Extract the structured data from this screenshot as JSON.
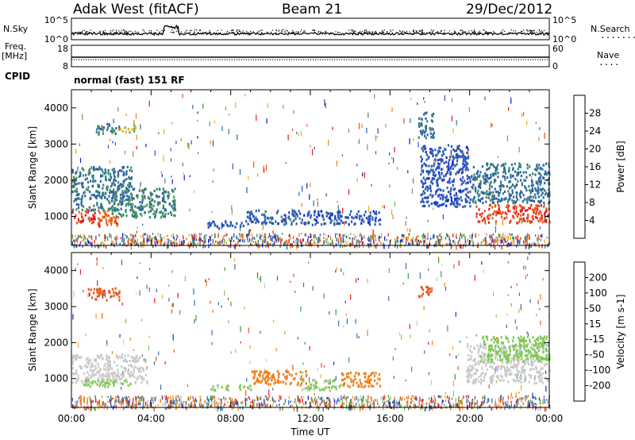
{
  "header": {
    "station": "Adak West (fitACF)",
    "beam": "Beam 21",
    "date": "29/Dec/2012"
  },
  "side_labels": {
    "nsky": "N.Sky",
    "nsearch": "N.Search",
    "nsearch_dots": "........",
    "freq": "Freq.",
    "freq_unit": "[MHz]",
    "nave": "Nave",
    "nave_dots": "....",
    "cpid": "CPID",
    "mode": "normal (fast) 151 RF"
  },
  "colors": {
    "power_scale": [
      "#0a1cd8",
      "#2a4fc0",
      "#2f63a8",
      "#3a8a66",
      "#62aa52",
      "#f1ab12",
      "#f07f18",
      "#e8561e",
      "#e51818"
    ],
    "velocity_scale": [
      "#e51818",
      "#e8561e",
      "#f07f18",
      "#f1a52b",
      "#c9c9c9",
      "#c9c9c9",
      "#7ec850",
      "#3aa03a",
      "#3a6cb4",
      "#1a34c8"
    ]
  },
  "chart_data": [
    {
      "type": "line",
      "name": "noise",
      "left_axis": {
        "title": "N.Sky",
        "tick_labels": [
          "10^5",
          "10^0"
        ]
      },
      "right_axis": {
        "title": "N.Search",
        "tick_labels": [
          "10^5",
          "10^0"
        ]
      },
      "x_range_hours": [
        0,
        24
      ]
    },
    {
      "type": "line",
      "name": "frequency-nave",
      "left_axis": {
        "title": "Freq. [MHz]",
        "tick_labels": [
          "18",
          "8"
        ],
        "range": [
          8,
          18
        ]
      },
      "right_axis": {
        "title": "Nave",
        "tick_labels": [
          "60",
          "0"
        ],
        "range": [
          0,
          60
        ]
      },
      "x_range_hours": [
        0,
        24
      ]
    },
    {
      "type": "heatmap",
      "name": "power",
      "ylabel": "Slant Range [km]",
      "ylim": [
        200,
        4500
      ],
      "yticks": [
        1000,
        2000,
        3000,
        4000
      ],
      "x_range_hours": [
        0,
        24
      ],
      "colorbar": {
        "title": "Power [dB]",
        "tick_labels": [
          "4",
          "8",
          "12",
          "16",
          "20",
          "24",
          "28"
        ],
        "range": [
          0,
          32
        ]
      },
      "regions": [
        {
          "t": [
            0.0,
            1.2
          ],
          "range": [
            850,
            1200
          ],
          "value": 30
        },
        {
          "t": [
            1.2,
            2.4
          ],
          "range": [
            750,
            1200
          ],
          "value": 26
        },
        {
          "t": [
            0.0,
            3.0
          ],
          "range": [
            1200,
            2400
          ],
          "value": 10
        },
        {
          "t": [
            2.0,
            5.2
          ],
          "range": [
            1000,
            1800
          ],
          "value": 12
        },
        {
          "t": [
            1.2,
            2.4
          ],
          "range": [
            3300,
            3600
          ],
          "value": 12
        },
        {
          "t": [
            2.4,
            3.2
          ],
          "range": [
            3350,
            3550
          ],
          "value": 18
        },
        {
          "t": [
            6.8,
            8.8
          ],
          "range": [
            700,
            900
          ],
          "value": 6
        },
        {
          "t": [
            8.8,
            11.5
          ],
          "range": [
            800,
            1200
          ],
          "value": 8
        },
        {
          "t": [
            11.5,
            15.5
          ],
          "range": [
            800,
            1200
          ],
          "value": 6
        },
        {
          "t": [
            17.4,
            18.2
          ],
          "range": [
            3200,
            3900
          ],
          "value": 10
        },
        {
          "t": [
            17.5,
            20.0
          ],
          "range": [
            1300,
            3000
          ],
          "value": 6
        },
        {
          "t": [
            20.0,
            24.0
          ],
          "range": [
            1400,
            2500
          ],
          "value": 10
        },
        {
          "t": [
            20.3,
            24.0
          ],
          "range": [
            850,
            1350
          ],
          "value": 28
        }
      ]
    },
    {
      "type": "heatmap",
      "name": "velocity",
      "ylabel": "Slant Range [km]",
      "ylim": [
        200,
        4500
      ],
      "yticks": [
        1000,
        2000,
        3000,
        4000
      ],
      "x_range_hours": [
        0,
        24
      ],
      "xlabel": "Time UT",
      "xtick_labels": [
        "00:00",
        "04:00",
        "08:00",
        "12:00",
        "16:00",
        "20:00",
        "00:00"
      ],
      "colorbar": {
        "title": "Velocity [m s-1]",
        "tick_labels": [
          "200",
          "100",
          "50",
          "15",
          "-15",
          "-50",
          "-100",
          "-200"
        ],
        "range": [
          -250,
          250
        ]
      },
      "regions": [
        {
          "t": [
            0.0,
            3.8
          ],
          "range": [
            900,
            1700
          ],
          "value": 0
        },
        {
          "t": [
            0.6,
            3.0
          ],
          "range": [
            800,
            1000
          ],
          "value": 30
        },
        {
          "t": [
            0.8,
            2.4
          ],
          "range": [
            3200,
            3550
          ],
          "value": -150
        },
        {
          "t": [
            6.8,
            9.0
          ],
          "range": [
            700,
            850
          ],
          "value": 25
        },
        {
          "t": [
            9.0,
            11.8
          ],
          "range": [
            850,
            1250
          ],
          "value": -75
        },
        {
          "t": [
            11.5,
            13.5
          ],
          "range": [
            700,
            1000
          ],
          "value": 25
        },
        {
          "t": [
            13.5,
            15.5
          ],
          "range": [
            800,
            1200
          ],
          "value": -75
        },
        {
          "t": [
            17.4,
            18.0
          ],
          "range": [
            3250,
            3600
          ],
          "value": -150
        },
        {
          "t": [
            19.8,
            24.0
          ],
          "range": [
            900,
            2000
          ],
          "value": 0
        },
        {
          "t": [
            20.5,
            24.0
          ],
          "range": [
            1500,
            2200
          ],
          "value": 30
        }
      ]
    }
  ]
}
